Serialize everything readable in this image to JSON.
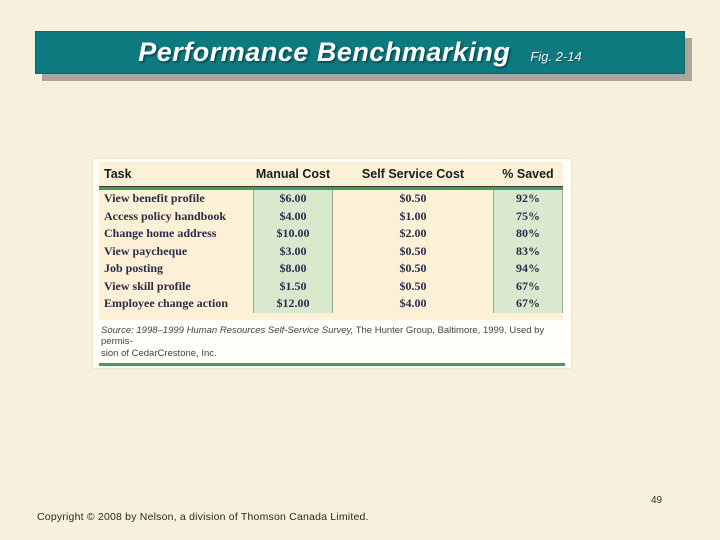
{
  "slide": {
    "title": "Performance Benchmarking",
    "fig_ref": "Fig. 2-14",
    "page_number": "49",
    "copyright": "Copyright © 2008 by Nelson, a division of Thomson Canada Limited."
  },
  "table": {
    "headers": [
      "Task",
      "Manual Cost",
      "Self Service Cost",
      "% Saved"
    ],
    "rows": [
      [
        "View benefit profile",
        "$6.00",
        "$0.50",
        "92%"
      ],
      [
        "Access policy handbook",
        "$4.00",
        "$1.00",
        "75%"
      ],
      [
        "Change home address",
        "$10.00",
        "$2.00",
        "80%"
      ],
      [
        "View paycheque",
        "$3.00",
        "$0.50",
        "83%"
      ],
      [
        "Job posting",
        "$8.00",
        "$0.50",
        "94%"
      ],
      [
        "View skill profile",
        "$1.50",
        "$0.50",
        "67%"
      ],
      [
        "Employee change action",
        "$12.00",
        "$4.00",
        "67%"
      ]
    ],
    "source_line1_italic": "Source: 1998–1999 Human Resources Self-Service Survey,",
    "source_line1_regular": " The Hunter Group, Baltimore, 1999. Used by permis-",
    "source_line2": "sion of CedarCrestone, Inc."
  },
  "colors": {
    "title_bar_teal": "#0d7a80",
    "slide_background": "#f7f0dc",
    "table_cream": "#fcf0d6",
    "highlight_green_column": "#d8e9ce",
    "rule_green": "#3f9e62",
    "shadow_gray": "#a7a79d"
  }
}
